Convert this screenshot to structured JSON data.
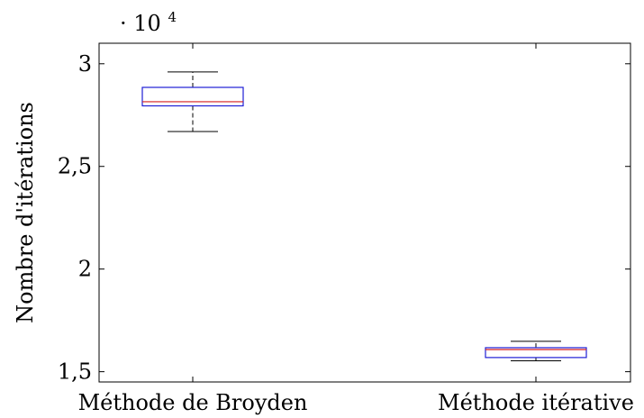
{
  "chart_data": {
    "type": "boxplot",
    "title": "",
    "xlabel": "",
    "ylabel": "Nombre d'itérations",
    "scale_multiplier_label": "· 10",
    "scale_multiplier_exponent": "4",
    "ylim": [
      1.45,
      3.1
    ],
    "yticks": [
      1.5,
      2,
      2.5,
      3
    ],
    "ytick_labels": [
      "1,5",
      "2",
      "2,5",
      "3"
    ],
    "categories": [
      "Méthode de Broyden",
      "Méthode itérative"
    ],
    "boxes": [
      {
        "category": "Méthode de Broyden",
        "whisker_low": 2.67,
        "q1": 2.795,
        "median": 2.815,
        "q3": 2.885,
        "whisker_high": 2.96
      },
      {
        "category": "Méthode itérative",
        "whisker_low": 1.553,
        "q1": 1.569,
        "median": 1.608,
        "q3": 1.617,
        "whisker_high": 1.648
      }
    ],
    "colors": {
      "box": "#1f1fd6",
      "median": "#d61f1f",
      "whisker": "#000000",
      "axis": "#000000"
    },
    "grid": false,
    "legend": "none"
  }
}
